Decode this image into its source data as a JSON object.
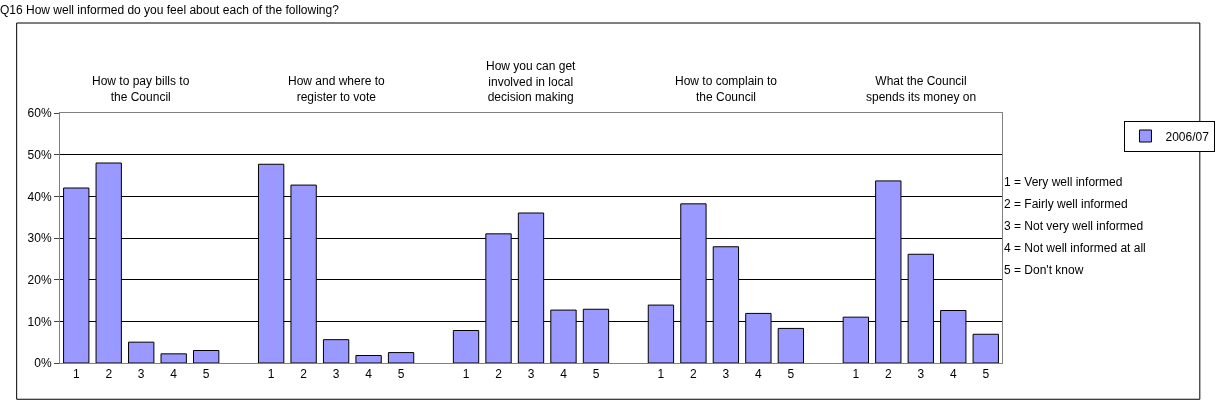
{
  "chart_data": {
    "type": "bar",
    "title": "Q16 How well informed do you feel about each of the following?",
    "categories": [
      "1",
      "2",
      "3",
      "4",
      "5",
      null,
      "1",
      "2",
      "3",
      "4",
      "5",
      null,
      "1",
      "2",
      "3",
      "4",
      "5",
      null,
      "1",
      "2",
      "3",
      "4",
      "5",
      null,
      "1",
      "2",
      "3",
      "4",
      "5"
    ],
    "series": [
      {
        "name": "2006/07",
        "color": "#9999ff",
        "values": [
          42,
          48,
          5,
          2.2,
          3,
          null,
          47.7,
          42.7,
          5.6,
          1.8,
          2.5,
          null,
          7.8,
          31,
          36,
          12.7,
          12.9,
          null,
          13.9,
          38.2,
          27.9,
          11.9,
          8.3,
          null,
          11,
          43.7,
          26.1,
          12.6,
          6.9
        ]
      }
    ],
    "ylim": [
      0,
      60
    ],
    "yticks": [
      {
        "value": 0,
        "label": "0%"
      },
      {
        "value": 10,
        "label": "10%"
      },
      {
        "value": 20,
        "label": "20%"
      },
      {
        "value": 30,
        "label": "30%"
      },
      {
        "value": 40,
        "label": "40%"
      },
      {
        "value": 50,
        "label": "50%"
      },
      {
        "value": 60,
        "label": "60%"
      }
    ],
    "grid": "y",
    "legend": "top right",
    "annotations": [
      "How to pay bills to the Council",
      "How and where to register to vote",
      "How you can get involved in local decision making",
      "How to complain to the Council",
      "What the Council spends its money on",
      "1 = Very well informed",
      "2 = Fairly well informed",
      "3 = Not very well informed",
      "4 = Not well informed at all",
      "5 = Don't know"
    ]
  }
}
